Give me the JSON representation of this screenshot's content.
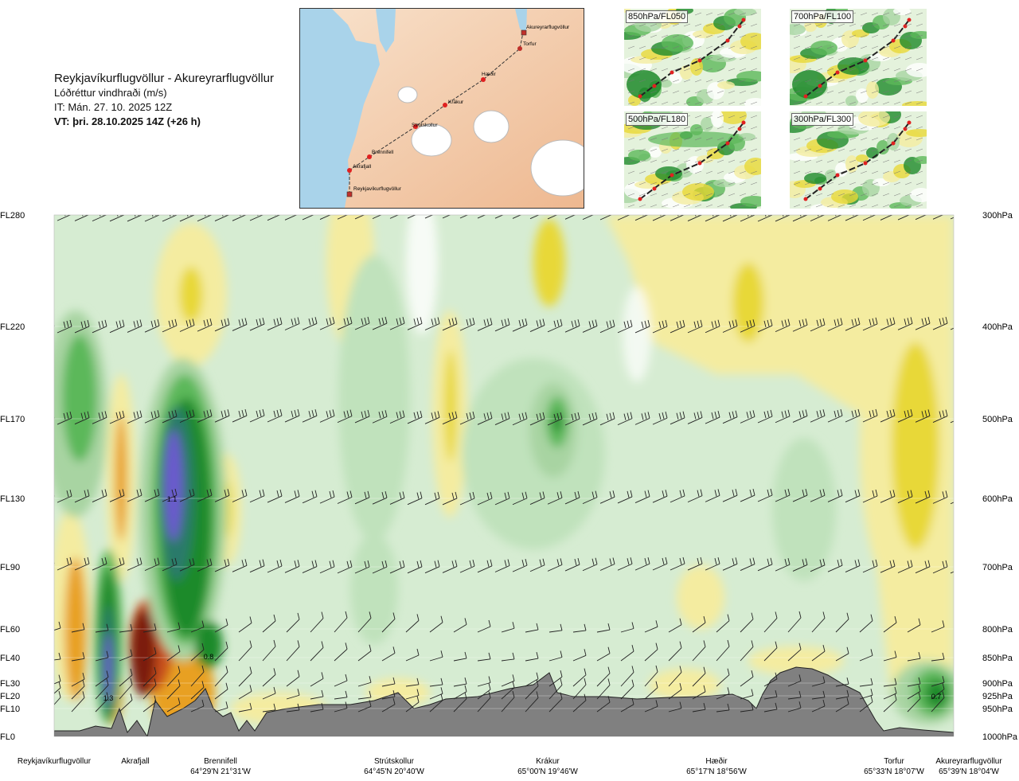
{
  "header": {
    "route": "Reykjavíkurflugvöllur - Akureyrarflugvöllur",
    "quantity": "Lóðréttur vindhraði (m/s)",
    "issue_time": "IT: Mán. 27. 10. 2025 12Z",
    "valid_time": "VT: þri. 28.10.2025 14Z (+26 h)"
  },
  "minimap": {
    "places": [
      {
        "name": "Akureyrarflugvöllur",
        "type": "airport"
      },
      {
        "name": "Torfur",
        "type": "point"
      },
      {
        "name": "Hæðir",
        "type": "point"
      },
      {
        "name": "Krákur",
        "type": "point"
      },
      {
        "name": "Strútskollur",
        "type": "point"
      },
      {
        "name": "Brennifell",
        "type": "point"
      },
      {
        "name": "Akrafjall",
        "type": "point"
      },
      {
        "name": "Reykjavíkurflugvöllur",
        "type": "airport"
      }
    ]
  },
  "panels": [
    {
      "label": "850hPa/FL050"
    },
    {
      "label": "700hPa/FL100"
    },
    {
      "label": "500hPa/FL180"
    },
    {
      "label": "300hPa/FL300"
    }
  ],
  "chart_data": {
    "type": "heatmap",
    "title": "Lóðréttur vindhraði (m/s)",
    "xlabel": "",
    "ylabel": "",
    "y_levels_fl": [
      "FL280",
      "FL220",
      "FL170",
      "FL130",
      "FL90",
      "FL60",
      "FL40",
      "FL30",
      "FL20",
      "FL10",
      "FL0"
    ],
    "y_levels_hpa": [
      "300hPa",
      "400hPa",
      "500hPa",
      "600hPa",
      "700hPa",
      "800hPa",
      "850hPa",
      "900hPa",
      "925hPa",
      "950hPa",
      "1000hPa"
    ],
    "waypoints": [
      {
        "name": "Reykjavíkurflugvöllur",
        "coord": ""
      },
      {
        "name": "Akrafjall",
        "coord": ""
      },
      {
        "name": "Brennifell",
        "coord": "64°29'N 21°31'W"
      },
      {
        "name": "Strútskollur",
        "coord": "64°45'N 20°40'W"
      },
      {
        "name": "Krákur",
        "coord": "65°00'N 19°46'W"
      },
      {
        "name": "Hæðir",
        "coord": "65°17'N 18°56'W"
      },
      {
        "name": "Torfur",
        "coord": "65°33'N 18°07'W"
      },
      {
        "name": "Akureyrarflugvöllur",
        "coord": "65°39'N 18°04'W"
      }
    ],
    "annotations": [
      {
        "text": "1.1",
        "fl": 130
      },
      {
        "text": "1.3",
        "fl": 20
      },
      {
        "text": "0.8",
        "fl": 40
      },
      {
        "text": "0.7",
        "fl": 20
      }
    ],
    "colors": {
      "strong_down": "#7b1a0c",
      "down": "#c8501e",
      "moderate_down": "#e8a020",
      "weak_down": "#e8d838",
      "very_weak_down": "#f4eca0",
      "neutral": "#ffffff",
      "very_weak_up": "#d6ecd2",
      "weak_up": "#a8d4a2",
      "moderate_up": "#5cb85a",
      "up": "#1e8a2a",
      "strong_up": "#2c7a6a",
      "very_strong_up": "#6a5acd",
      "terrain": "#808080"
    }
  }
}
